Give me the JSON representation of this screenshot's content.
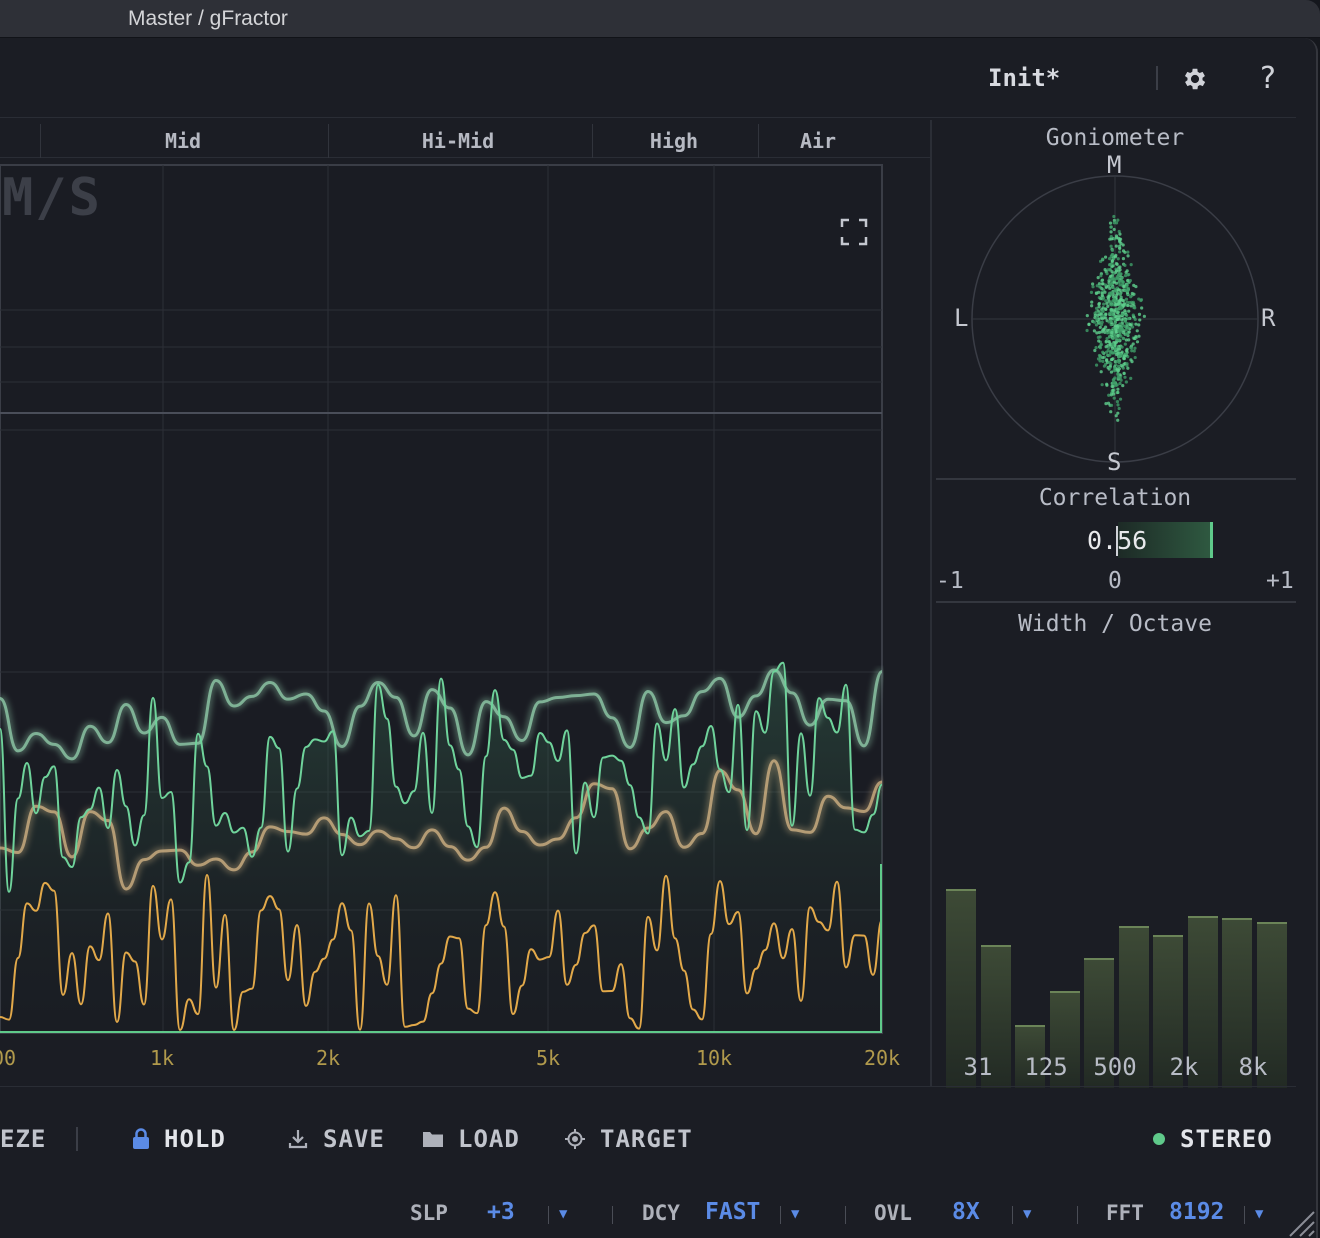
{
  "window": {
    "title": "Master / gFractor"
  },
  "header": {
    "preset_name": "Init*"
  },
  "bands": [
    "Mid",
    "Hi-Mid",
    "High",
    "Air"
  ],
  "spectrum": {
    "mode_label": "M/S",
    "freq_labels": [
      "00",
      "1k",
      "2k",
      "5k",
      "10k",
      "20k"
    ],
    "colors": {
      "mid": "#7cd6a0",
      "side": "#e8b45a",
      "bar": "#5fc98a"
    }
  },
  "goniometer": {
    "title": "Goniometer",
    "top": "M",
    "bottom": "S",
    "left": "L",
    "right": "R"
  },
  "correlation": {
    "title": "Correlation",
    "value": "0.56",
    "min": "-1",
    "mid": "0",
    "max": "+1"
  },
  "width_octave": {
    "title": "Width / Octave",
    "labels": [
      "31",
      "125",
      "500",
      "2k",
      "8k"
    ],
    "values": [
      0.95,
      0.68,
      0.3,
      0.46,
      0.62,
      0.77,
      0.73,
      0.82,
      0.81,
      0.79
    ]
  },
  "bottom": {
    "freeze_label": "EZE",
    "hold_label": "HOLD",
    "save_label": "SAVE",
    "load_label": "LOAD",
    "target_label": "TARGET",
    "stereo_label": "STEREO"
  },
  "status": {
    "slp_label": "SLP",
    "slp_value": "+3",
    "dcy_label": "DCY",
    "dcy_value": "FAST",
    "ovl_label": "OVL",
    "ovl_value": "8X",
    "fft_label": "FFT",
    "fft_value": "8192"
  }
}
